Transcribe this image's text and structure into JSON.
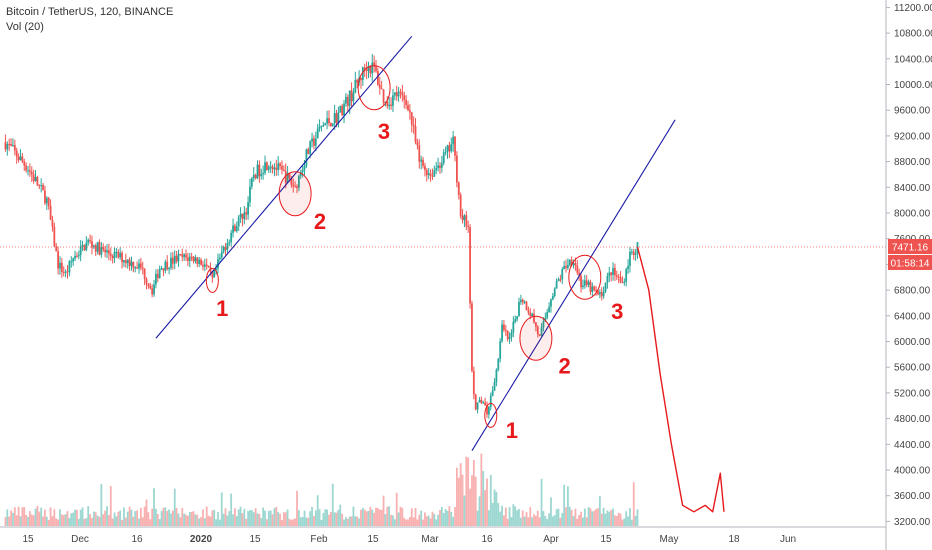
{
  "header": {
    "symbol": "Bitcoin / TetherUS, 120, BINANCE",
    "volume": "Vol (20)"
  },
  "price_tags": {
    "last_price": "7471.16",
    "countdown": "01:58:14"
  },
  "colors": {
    "up": "#26a69a",
    "down": "#ef5350",
    "trendline": "#1a1aa6",
    "annotation": "#e8191b",
    "price_line": "#ef5350"
  },
  "chart_data": {
    "type": "candlestick",
    "price_axis": {
      "ticks": [
        "11200.00",
        "10800.00",
        "10400.00",
        "10000.00",
        "9600.00",
        "9200.00",
        "8800.00",
        "8400.00",
        "8000.00",
        "7600.00",
        "7200.00",
        "6800.00",
        "6400.00",
        "6000.00",
        "5600.00",
        "5200.00",
        "4800.00",
        "4400.00",
        "4000.00",
        "3600.00",
        "3200.00"
      ],
      "range": [
        3100,
        11300
      ]
    },
    "time_axis": {
      "ticks": [
        "15",
        "Dec",
        "16",
        "2020",
        "15",
        "Feb",
        "15",
        "Mar",
        "16",
        "Apr",
        "15",
        "May",
        "18",
        "Jun"
      ],
      "ticks_bold": [
        false,
        false,
        false,
        true,
        false,
        false,
        false,
        false,
        false,
        false,
        false,
        false,
        false,
        false
      ]
    },
    "price_path": [
      [
        "2019-11-09",
        9100
      ],
      [
        "2019-11-15",
        8700
      ],
      [
        "2019-11-20",
        8200
      ],
      [
        "2019-11-23",
        7200
      ],
      [
        "2019-11-25",
        7050
      ],
      [
        "2019-11-27",
        7300
      ],
      [
        "2019-12-01",
        7550
      ],
      [
        "2019-12-05",
        7400
      ],
      [
        "2019-12-10",
        7300
      ],
      [
        "2019-12-15",
        7150
      ],
      [
        "2019-12-18",
        6800
      ],
      [
        "2019-12-20",
        7150
      ],
      [
        "2019-12-25",
        7300
      ],
      [
        "2019-12-29",
        7300
      ],
      [
        "2020-01-01",
        7200
      ],
      [
        "2020-01-03",
        6950
      ],
      [
        "2020-01-06",
        7450
      ],
      [
        "2020-01-09",
        7800
      ],
      [
        "2020-01-12",
        8050
      ],
      [
        "2020-01-14",
        8600
      ],
      [
        "2020-01-18",
        8800
      ],
      [
        "2020-01-22",
        8600
      ],
      [
        "2020-01-25",
        8400
      ],
      [
        "2020-01-28",
        8900
      ],
      [
        "2020-02-01",
        9350
      ],
      [
        "2020-02-05",
        9500
      ],
      [
        "2020-02-09",
        9850
      ],
      [
        "2020-02-13",
        10300
      ],
      [
        "2020-02-15",
        10250
      ],
      [
        "2020-02-18",
        9700
      ],
      [
        "2020-02-21",
        9850
      ],
      [
        "2020-02-24",
        9700
      ],
      [
        "2020-02-27",
        8800
      ],
      [
        "2020-03-01",
        8600
      ],
      [
        "2020-03-05",
        8900
      ],
      [
        "2020-03-07",
        9100
      ],
      [
        "2020-03-09",
        8000
      ],
      [
        "2020-03-11",
        7800
      ],
      [
        "2020-03-12",
        5500
      ],
      [
        "2020-03-13",
        4900
      ],
      [
        "2020-03-14",
        5100
      ],
      [
        "2020-03-16",
        4900
      ],
      [
        "2020-03-18",
        5350
      ],
      [
        "2020-03-20",
        6200
      ],
      [
        "2020-03-22",
        6000
      ],
      [
        "2020-03-25",
        6700
      ],
      [
        "2020-03-28",
        6400
      ],
      [
        "2020-03-30",
        6050
      ],
      [
        "2020-04-02",
        6700
      ],
      [
        "2020-04-06",
        7200
      ],
      [
        "2020-04-08",
        7300
      ],
      [
        "2020-04-10",
        6900
      ],
      [
        "2020-04-12",
        6850
      ],
      [
        "2020-04-15",
        6700
      ],
      [
        "2020-04-18",
        7100
      ],
      [
        "2020-04-21",
        6900
      ],
      [
        "2020-04-23",
        7350
      ],
      [
        "2020-04-25",
        7471
      ]
    ],
    "projection": [
      [
        "2020-04-25",
        7471
      ],
      [
        "2020-04-28",
        6800
      ],
      [
        "2020-05-01",
        5500
      ],
      [
        "2020-05-04",
        4400
      ],
      [
        "2020-05-07",
        3450
      ],
      [
        "2020-05-10",
        3350
      ],
      [
        "2020-05-13",
        3450
      ],
      [
        "2020-05-15",
        3350
      ],
      [
        "2020-05-17",
        3950
      ],
      [
        "2020-05-18",
        3350
      ]
    ],
    "trendlines": [
      {
        "from": [
          "2019-12-19",
          6050
        ],
        "to": [
          "2020-02-25",
          10750
        ]
      },
      {
        "from": [
          "2020-03-12",
          4300
        ],
        "to": [
          "2020-05-05",
          9450
        ]
      }
    ],
    "annotations": [
      {
        "label": "1",
        "circle": [
          "2020-01-03",
          6950
        ],
        "text_at": [
          "2020-01-04",
          6400
        ]
      },
      {
        "label": "2",
        "circle": [
          "2020-01-25",
          8300
        ],
        "text_at": [
          "2020-01-30",
          7750
        ]
      },
      {
        "label": "3",
        "circle": [
          "2020-02-15",
          9950
        ],
        "text_at": [
          "2020-02-16",
          9150
        ]
      },
      {
        "label": "1",
        "circle": [
          "2020-03-17",
          4850
        ],
        "text_at": [
          "2020-03-21",
          4500
        ]
      },
      {
        "label": "2",
        "circle": [
          "2020-03-29",
          6050
        ],
        "text_at": [
          "2020-04-04",
          5500
        ]
      },
      {
        "label": "3",
        "circle": [
          "2020-04-11",
          7000
        ],
        "text_at": [
          "2020-04-18",
          6350
        ]
      }
    ]
  }
}
